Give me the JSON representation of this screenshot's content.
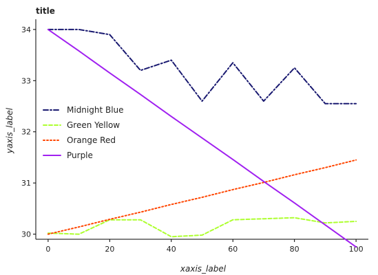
{
  "chart_data": {
    "type": "line",
    "title": "title",
    "xlabel": "xaxis_label",
    "ylabel": "yaxis_label",
    "x": [
      0,
      10,
      20,
      30,
      40,
      50,
      60,
      70,
      80,
      90,
      100
    ],
    "xticks": [
      0,
      20,
      40,
      60,
      80,
      100
    ],
    "yticks": [
      30,
      31,
      32,
      33,
      34
    ],
    "xlim": [
      -4,
      104
    ],
    "ylim": [
      29.9,
      34.2
    ],
    "grid": false,
    "legend_position": "middle-left",
    "series": [
      {
        "name": "Midnight Blue",
        "color": "#191970",
        "dash": "dashdot",
        "values": [
          34.0,
          34.0,
          33.9,
          33.2,
          33.4,
          32.6,
          33.35,
          32.6,
          33.25,
          32.55,
          32.55
        ]
      },
      {
        "name": "Green Yellow",
        "color": "#adff2f",
        "dash": "dashed",
        "values": [
          30.02,
          30.0,
          30.28,
          30.28,
          29.95,
          29.98,
          30.28,
          30.3,
          30.32,
          30.22,
          30.25
        ]
      },
      {
        "name": "Orange Red",
        "color": "#ff4500",
        "dash": "dotted",
        "values": [
          30.0,
          30.14,
          30.29,
          30.43,
          30.58,
          30.72,
          30.87,
          31.01,
          31.16,
          31.3,
          31.45
        ]
      },
      {
        "name": "Purple",
        "color": "#a020f0",
        "dash": "solid",
        "values": [
          34.0,
          33.58,
          33.15,
          32.73,
          32.3,
          31.88,
          31.46,
          31.03,
          30.61,
          30.18,
          29.75
        ]
      }
    ]
  }
}
